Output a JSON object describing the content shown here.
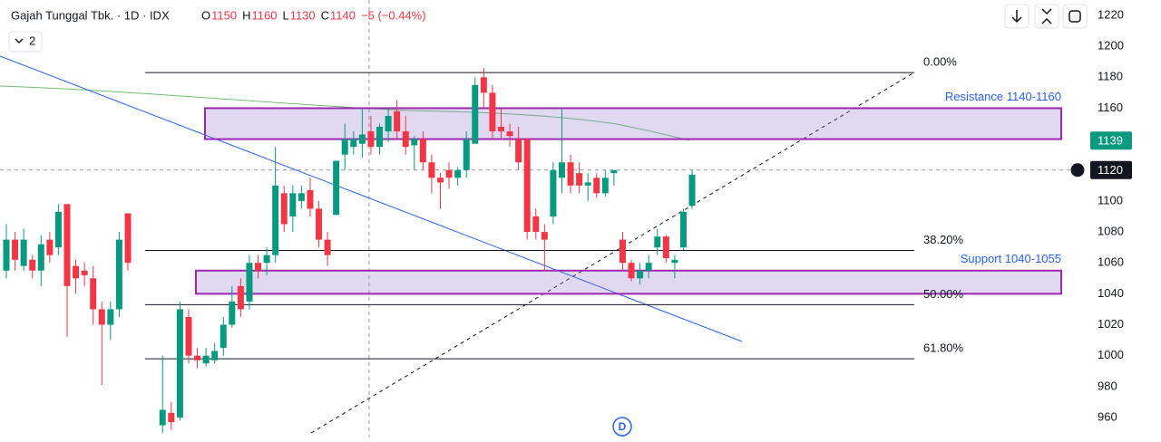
{
  "chart_data": {
    "type": "candlestick",
    "title": "Gajah Tunggal Tbk. · 1D · IDX",
    "ohlc_header": [
      {
        "label": "O",
        "value": 1150
      },
      {
        "label": "H",
        "value": 1160
      },
      {
        "label": "L",
        "value": 1130
      },
      {
        "label": "C",
        "value": 1140
      }
    ],
    "change": "−5 (−0.44%)",
    "indicator_count": "2",
    "marker": "D",
    "up_color": "#089981",
    "down_color": "#f23645",
    "ylim": [
      947.1,
      1229.95
    ],
    "yticks": [
      1220,
      1200,
      1180,
      1160,
      1140,
      1120,
      1100,
      1080,
      1060,
      1040,
      1020,
      1000,
      980,
      960
    ],
    "open": [
      1055,
      1075,
      1058,
      1062,
      1055,
      1075,
      1070,
      1098,
      1058,
      1055,
      1050,
      1030,
      1020,
      1030,
      1092,
      null,
      null,
      null,
      955,
      963,
      960,
      1025,
      1000,
      995,
      997,
      1005,
      1020,
      1045,
      1035,
      1060,
      1060,
      1065,
      1105,
      1090,
      1100,
      1107,
      1095,
      1075,
      1091,
      1130,
      1135,
      1137,
      1145,
      1135,
      1145,
      1158,
      1145,
      1136,
      1140,
      1125,
      1115,
      1120,
      1115,
      1120,
      1137,
      1180,
      1170,
      1148,
      1145,
      1140,
      1140,
      1090,
      1080,
      1090,
      1115,
      1125,
      1118,
      1110,
      1115,
      1105,
      1118,
      1075,
      1060,
      1050,
      1055,
      1070,
      1077,
      1060,
      1070,
      1097
    ],
    "high": [
      1085,
      1080,
      1082,
      1065,
      1078,
      1080,
      1098,
      1098,
      1062,
      1060,
      1058,
      1035,
      1035,
      1080,
      1092,
      null,
      null,
      null,
      1000,
      970,
      1035,
      1030,
      1005,
      1005,
      1008,
      1025,
      1045,
      1050,
      1065,
      1065,
      1070,
      1135,
      1110,
      1110,
      1110,
      1115,
      1100,
      1080,
      1126,
      1150,
      1145,
      1160,
      1155,
      1150,
      1160,
      1165,
      1155,
      1142,
      1145,
      1130,
      1118,
      1125,
      1122,
      1145,
      1180,
      1186,
      1175,
      1160,
      1150,
      1148,
      1140,
      1095,
      1085,
      1125,
      1160,
      1130,
      1125,
      1118,
      1118,
      1120,
      1120,
      1080,
      1062,
      1060,
      1065,
      1082,
      1078,
      1065,
      1095,
      1120
    ],
    "low": [
      1050,
      1055,
      1055,
      1050,
      1045,
      1060,
      1065,
      1012,
      1040,
      1045,
      1020,
      981,
      1010,
      1025,
      1055,
      null,
      null,
      null,
      950,
      952,
      958,
      995,
      992,
      993,
      995,
      1000,
      1018,
      1025,
      1030,
      1050,
      1052,
      1060,
      1080,
      1080,
      1095,
      1090,
      1070,
      1058,
      1091,
      1120,
      1130,
      1128,
      1130,
      1130,
      1138,
      1140,
      1130,
      1120,
      1120,
      1105,
      1095,
      1108,
      1110,
      1115,
      1137,
      1160,
      1140,
      1140,
      1135,
      1120,
      1075,
      1075,
      1055,
      1085,
      1105,
      1105,
      1105,
      1100,
      1102,
      1103,
      1110,
      1055,
      1048,
      1046,
      1050,
      1065,
      1060,
      1050,
      1068,
      1095
    ],
    "close": [
      1075,
      1062,
      1075,
      1055,
      1072,
      1065,
      1093,
      1045,
      1050,
      1052,
      1030,
      1020,
      1030,
      1075,
      1060,
      null,
      null,
      null,
      965,
      957,
      1030,
      1000,
      997,
      1000,
      1003,
      1020,
      1035,
      1030,
      1060,
      1055,
      1065,
      1110,
      1085,
      1105,
      1105,
      1095,
      1075,
      1065,
      1126,
      1140,
      1140,
      1143,
      1135,
      1148,
      1155,
      1145,
      1135,
      1140,
      1125,
      1115,
      1112,
      1115,
      1120,
      1140,
      1175,
      1170,
      1145,
      1145,
      1142,
      1125,
      1080,
      1080,
      1075,
      1120,
      1125,
      1110,
      1110,
      1112,
      1105,
      1115,
      1120,
      1060,
      1050,
      1055,
      1060,
      1077,
      1063,
      1062,
      1093,
      1117
    ],
    "fib_levels": [
      {
        "label": "0.00%",
        "price": 1183
      },
      {
        "label": "38.20%",
        "price": 1068
      },
      {
        "label": "50.00%",
        "price": 1033
      },
      {
        "label": "61.80%",
        "price": 998
      }
    ],
    "zones": [
      {
        "label": "Resistance 1140-1160",
        "low": 1140,
        "high": 1160
      },
      {
        "label": "Support 1040-1055",
        "low": 1040,
        "high": 1055
      }
    ],
    "price_badges": [
      {
        "value": 1139,
        "color": "#089981"
      },
      {
        "value": 1120,
        "color": "#131722"
      }
    ]
  }
}
